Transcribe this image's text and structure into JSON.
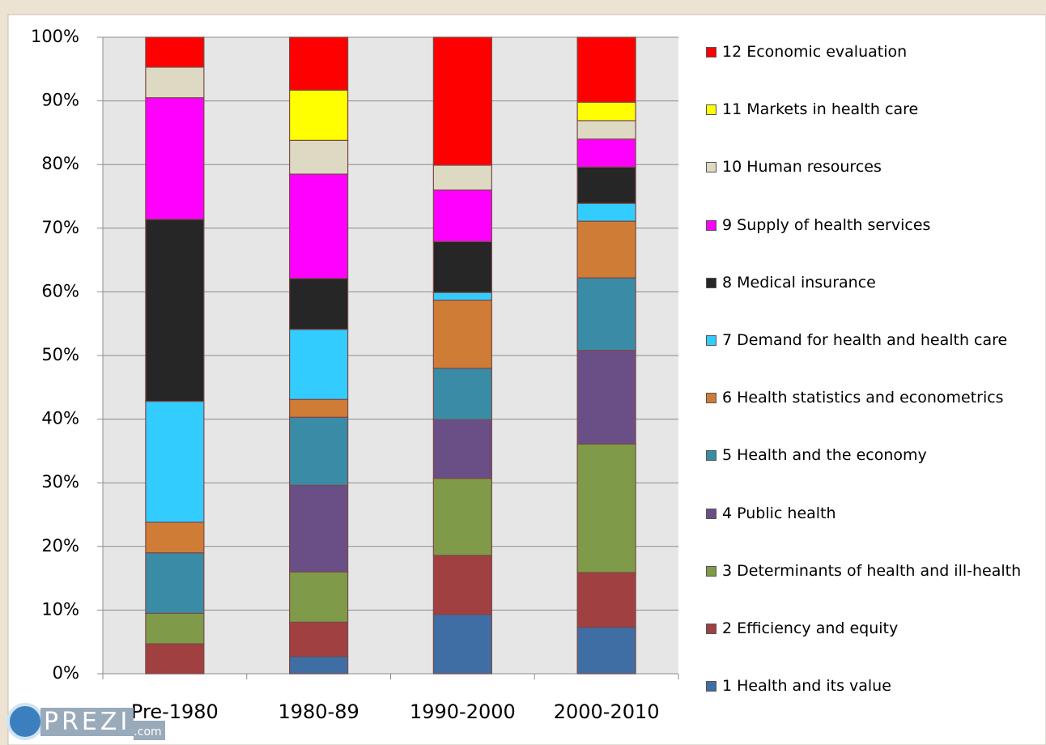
{
  "chart_data": {
    "type": "stacked_bar",
    "categories": [
      "Pre-1980",
      "1980-89",
      "1990-2000",
      "2000-2010"
    ],
    "series": [
      {
        "name": "1 Health and its value",
        "color": "#3f6ea5",
        "values": [
          0,
          2.7,
          9.3,
          7.3
        ]
      },
      {
        "name": "2 Efficiency and equity",
        "color": "#a04040",
        "values": [
          4.7,
          5.4,
          9.3,
          8.6
        ]
      },
      {
        "name": "3 Determinants of health and ill-health",
        "color": "#7f9a48",
        "values": [
          4.8,
          7.9,
          12.1,
          20.2
        ]
      },
      {
        "name": "4 Public health",
        "color": "#694f86",
        "values": [
          0,
          13.6,
          9.2,
          14.7
        ]
      },
      {
        "name": "5 Health and the economy",
        "color": "#3a8ba5",
        "values": [
          9.5,
          10.7,
          8.1,
          11.4
        ]
      },
      {
        "name": "6 Health statistics and econometrics",
        "color": "#cf7d36",
        "values": [
          4.8,
          2.8,
          10.7,
          8.9
        ]
      },
      {
        "name": "7 Demand for health and health care",
        "color": "#33ccff",
        "values": [
          19.0,
          11.0,
          1.2,
          2.8
        ]
      },
      {
        "name": "8 Medical insurance",
        "color": "#262626",
        "values": [
          28.6,
          8.0,
          8.0,
          5.7
        ]
      },
      {
        "name": "9 Supply of health services",
        "color": "#ff00ff",
        "values": [
          19.1,
          16.4,
          8.1,
          4.4
        ]
      },
      {
        "name": "10 Human resources",
        "color": "#ddd9c3",
        "values": [
          4.8,
          5.3,
          3.9,
          2.9
        ]
      },
      {
        "name": "11 Markets in health care",
        "color": "#ffff00",
        "values": [
          0,
          7.9,
          0,
          2.9
        ]
      },
      {
        "name": "12 Economic evaluation",
        "color": "#ff0000",
        "values": [
          4.7,
          8.3,
          20.1,
          10.2
        ]
      }
    ],
    "ylim": [
      0,
      100
    ],
    "yticks": [
      {
        "value": 0,
        "label": "0%"
      },
      {
        "value": 10,
        "label": "10%"
      },
      {
        "value": 20,
        "label": "20%"
      },
      {
        "value": 30,
        "label": "30%"
      },
      {
        "value": 40,
        "label": "40%"
      },
      {
        "value": 50,
        "label": "50%"
      },
      {
        "value": 60,
        "label": "60%"
      },
      {
        "value": 70,
        "label": "70%"
      },
      {
        "value": 80,
        "label": "80%"
      },
      {
        "value": 90,
        "label": "90%"
      },
      {
        "value": 100,
        "label": "100%"
      }
    ],
    "grid": true,
    "watermark": "PREZI",
    "watermark_suffix": ".com"
  }
}
